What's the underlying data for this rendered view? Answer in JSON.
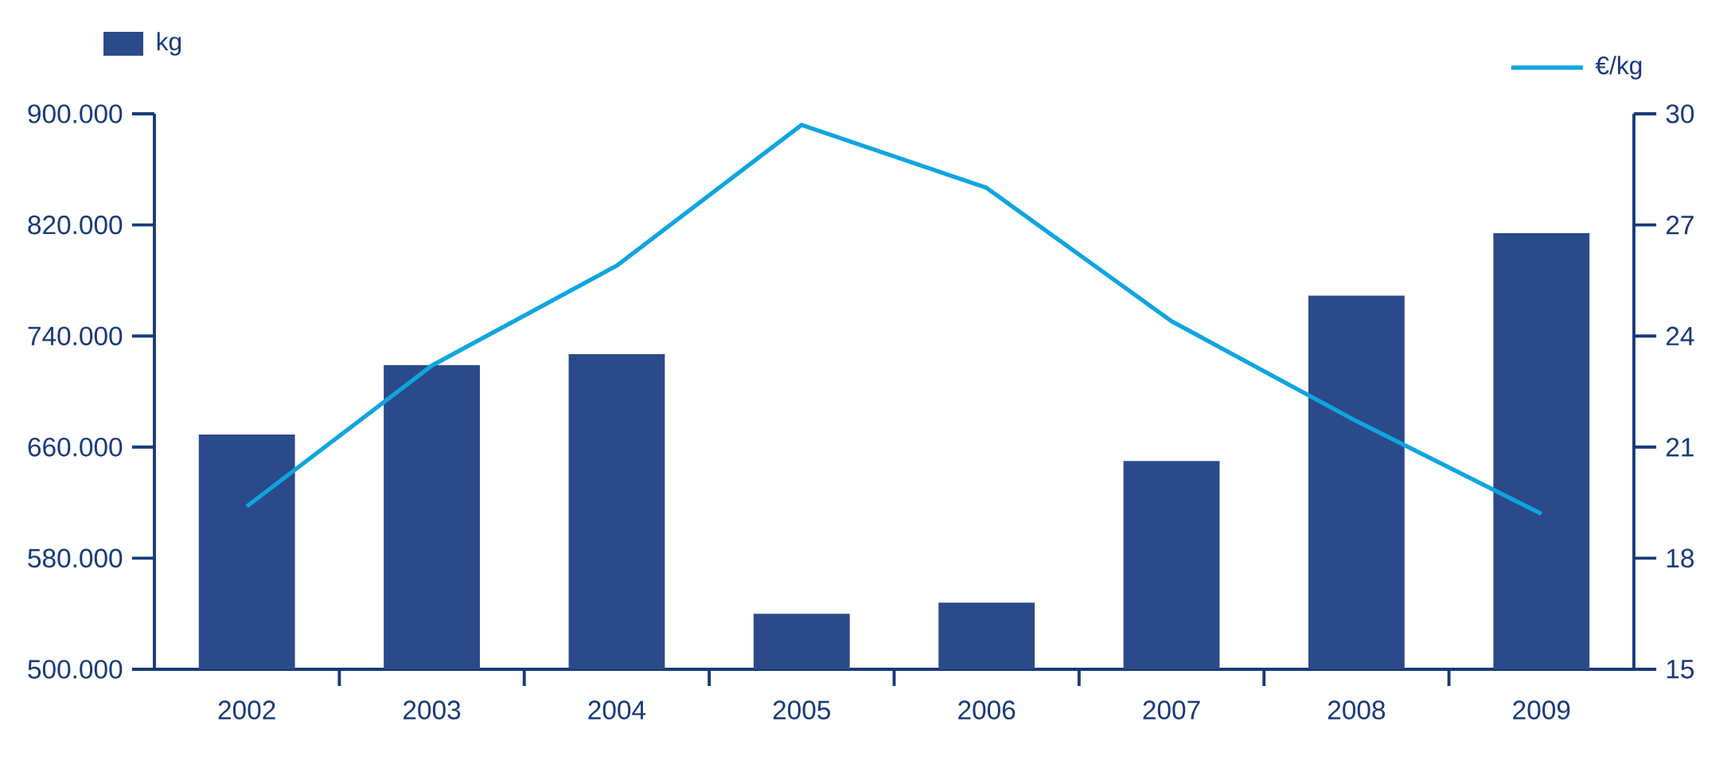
{
  "chart_data": {
    "type": "bar",
    "categories": [
      "2002",
      "2003",
      "2004",
      "2005",
      "2006",
      "2007",
      "2008",
      "2009"
    ],
    "series": [
      {
        "name": "kg",
        "color": "#2b4a8a",
        "values": [
          669000,
          719000,
          727000,
          540000,
          548000,
          650000,
          769000,
          814000
        ]
      },
      {
        "name": "€/kg",
        "type": "line",
        "axis": "y2",
        "color": "#0ea5e0",
        "values": [
          19.4,
          23.2,
          25.9,
          29.7,
          28.0,
          24.4,
          21.7,
          19.2
        ]
      }
    ],
    "ylim": [
      500000,
      900000
    ],
    "yticks": [
      {
        "value": 500000,
        "label": "500.000"
      },
      {
        "value": 580000,
        "label": "580.000"
      },
      {
        "value": 660000,
        "label": "660.000"
      },
      {
        "value": 740000,
        "label": "740.000"
      },
      {
        "value": 820000,
        "label": "820.000"
      },
      {
        "value": 900000,
        "label": "900.000"
      }
    ],
    "y2lim": [
      15,
      30
    ],
    "y2ticks": [
      15,
      18,
      21,
      24,
      27,
      30
    ],
    "legend": "top"
  }
}
